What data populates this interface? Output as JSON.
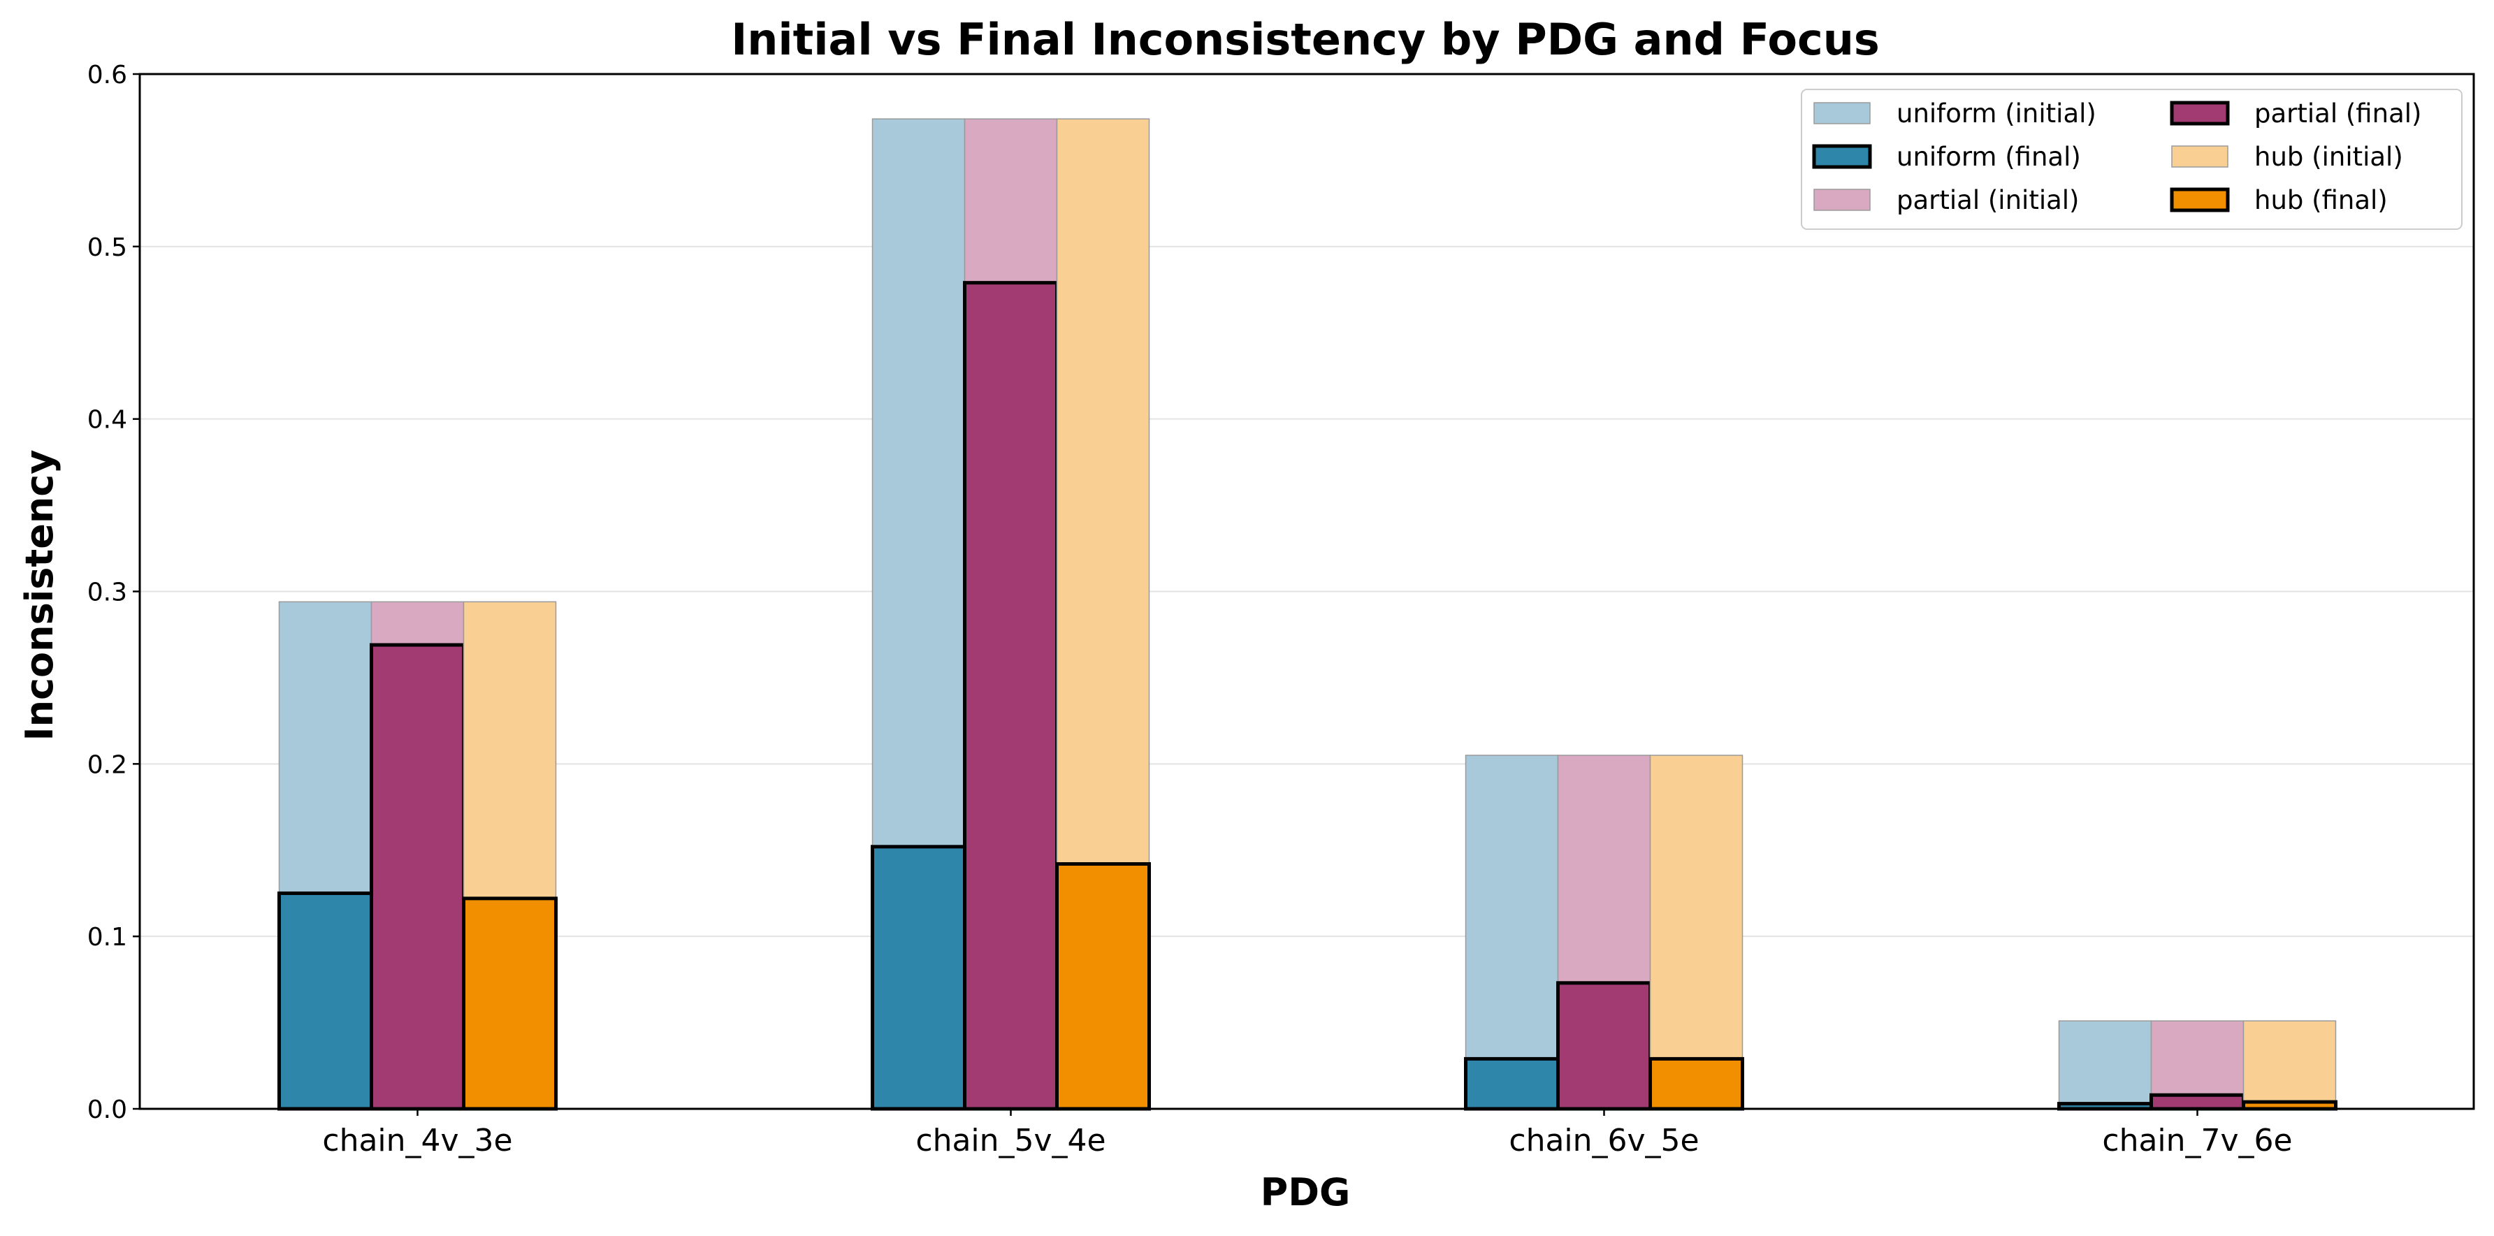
{
  "chart_data": {
    "type": "bar",
    "title": "Initial vs Final Inconsistency by PDG and Focus",
    "xlabel": "PDG",
    "ylabel": "Inconsistency",
    "categories": [
      "chain_4v_3e",
      "chain_5v_4e",
      "chain_6v_5e",
      "chain_7v_6e"
    ],
    "ylim": [
      0,
      0.6
    ],
    "yticks": [
      "0.0",
      "0.1",
      "0.2",
      "0.3",
      "0.4",
      "0.5",
      "0.6"
    ],
    "grid": "horizontal",
    "legend_position": "top-right",
    "series": [
      {
        "name": "uniform (initial)",
        "focus": "uniform",
        "kind": "initial",
        "color": "#A7C9DA",
        "values": [
          0.294,
          0.574,
          0.205,
          0.051
        ]
      },
      {
        "name": "uniform (final)",
        "focus": "uniform",
        "kind": "final",
        "color": "#2E86AB",
        "values": [
          0.125,
          0.152,
          0.029,
          0.003
        ]
      },
      {
        "name": "partial (initial)",
        "focus": "partial",
        "kind": "initial",
        "color": "#D8A9C1",
        "values": [
          0.294,
          0.574,
          0.205,
          0.051
        ]
      },
      {
        "name": "partial (final)",
        "focus": "partial",
        "kind": "final",
        "color": "#A23B72",
        "values": [
          0.269,
          0.479,
          0.073,
          0.008
        ]
      },
      {
        "name": "hub (initial)",
        "focus": "hub",
        "kind": "initial",
        "color": "#F9CF93",
        "values": [
          0.294,
          0.574,
          0.205,
          0.051
        ]
      },
      {
        "name": "hub (final)",
        "focus": "hub",
        "kind": "final",
        "color": "#F18F01",
        "values": [
          0.122,
          0.142,
          0.029,
          0.004
        ]
      }
    ],
    "legend_columns": [
      [
        "uniform (initial)",
        "uniform (final)",
        "partial (initial)"
      ],
      [
        "partial (final)",
        "hub (initial)",
        "hub (final)"
      ]
    ]
  }
}
